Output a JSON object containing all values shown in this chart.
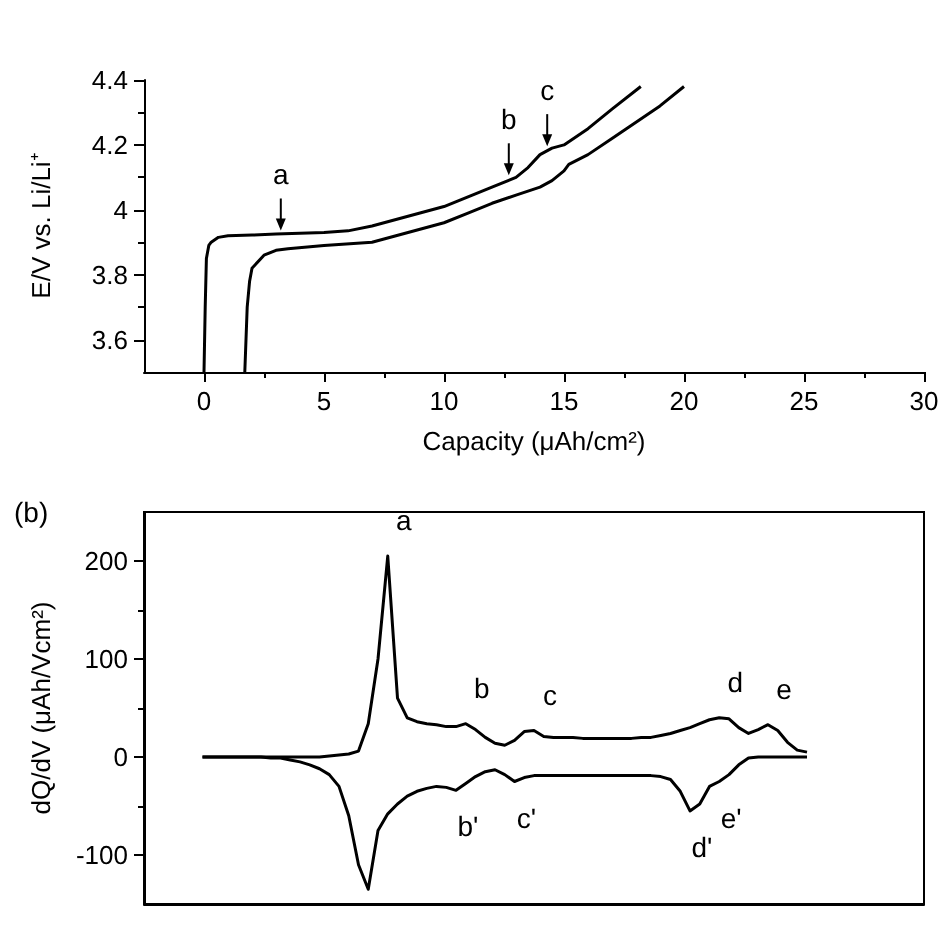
{
  "chart_data": [
    {
      "type": "line",
      "xlabel": "Capacity (μAh/cm²)",
      "ylabel": "E/V vs. Li/Li⁺",
      "xlim": [
        -2.5,
        30
      ],
      "xticks": [
        0,
        5,
        10,
        15,
        20,
        25,
        30
      ],
      "ylim": [
        3.5,
        4.4
      ],
      "yticks": [
        3.6,
        3.8,
        4.0,
        4.2,
        4.4
      ],
      "grid": false,
      "marker": "none",
      "line_style": "solid",
      "annotations": [
        {
          "text": "a",
          "x": 3.2,
          "y": 3.93
        },
        {
          "text": "b",
          "x": 12.7,
          "y": 4.1
        },
        {
          "text": "c",
          "x": 14.3,
          "y": 4.19
        }
      ],
      "series": [
        {
          "color": "#000000",
          "x": [
            0,
            0.05,
            0.1,
            0.2,
            0.3,
            0.6,
            1,
            2,
            3,
            4,
            5,
            6,
            7,
            8,
            9,
            10,
            11,
            12,
            13,
            13.5,
            14,
            14.5,
            15,
            16,
            17,
            18.2
          ],
          "values": [
            3.5,
            3.7,
            3.85,
            3.89,
            3.9,
            3.915,
            3.92,
            3.922,
            3.925,
            3.928,
            3.93,
            3.935,
            3.95,
            3.97,
            3.99,
            4.01,
            4.04,
            4.07,
            4.1,
            4.13,
            4.17,
            4.19,
            4.2,
            4.25,
            4.31,
            4.38
          ]
        },
        {
          "color": "#000000",
          "x": [
            1.7,
            1.75,
            1.8,
            1.9,
            2,
            2.5,
            3,
            3.5,
            5,
            7,
            8,
            9,
            10,
            11,
            12,
            13,
            14,
            14.5,
            15,
            15.2,
            16,
            17,
            18,
            19,
            20
          ],
          "values": [
            3.5,
            3.6,
            3.7,
            3.78,
            3.82,
            3.86,
            3.875,
            3.88,
            3.89,
            3.9,
            3.92,
            3.94,
            3.96,
            3.99,
            4.02,
            4.045,
            4.07,
            4.09,
            4.12,
            4.14,
            4.17,
            4.22,
            4.27,
            4.32,
            4.38
          ]
        }
      ]
    },
    {
      "type": "line",
      "title": "(b)",
      "ylabel": "dQ/dV (μAh/Vcm²)",
      "categories": [
        null,
        null,
        null,
        null,
        null,
        null,
        null,
        null,
        null,
        null,
        null,
        null,
        null,
        null,
        null,
        null,
        null,
        null,
        null,
        null,
        null,
        null,
        null,
        null,
        null,
        null,
        null,
        null,
        null,
        null,
        null,
        null,
        null,
        null,
        null,
        null,
        null,
        null,
        null,
        null,
        null,
        null,
        null,
        null,
        null,
        null,
        null,
        null,
        null,
        null,
        null,
        null,
        null,
        null,
        null,
        null,
        null,
        null,
        null,
        null,
        null,
        null,
        null,
        null,
        null,
        null,
        null,
        null,
        null,
        null,
        null,
        null,
        null,
        null,
        null,
        null,
        null,
        null,
        null,
        null,
        null
      ],
      "ylim": [
        -150,
        250
      ],
      "yticks": [
        -100,
        0,
        100,
        200
      ],
      "tick_labels": "y",
      "grid": false,
      "line_style": "solid",
      "series": [
        {
          "color": "#000000",
          "values": [
            null,
            null,
            null,
            null,
            null,
            null,
            0,
            0,
            0,
            0,
            0,
            0,
            0,
            0,
            0,
            0,
            0,
            0,
            0,
            1,
            2,
            3,
            6,
            34,
            100,
            205,
            60,
            40,
            36,
            34,
            33,
            31,
            31,
            34,
            28,
            20,
            14,
            12,
            17,
            26,
            27,
            21,
            20,
            20,
            20,
            19,
            19,
            19,
            19,
            19,
            19,
            20,
            20,
            22,
            24,
            27,
            30,
            34,
            38,
            40,
            39,
            30,
            24,
            28,
            33,
            27,
            15,
            7,
            5,
            null,
            null,
            null,
            null,
            null,
            null,
            null,
            null,
            null,
            null,
            null,
            null
          ],
          "value_labels": [
            null,
            null,
            null,
            null,
            null,
            null,
            null,
            null,
            null,
            null,
            null,
            null,
            null,
            null,
            null,
            null,
            null,
            null,
            null,
            null,
            null,
            null,
            null,
            null,
            null,
            "a",
            null,
            null,
            null,
            null,
            null,
            null,
            null,
            "b",
            null,
            null,
            null,
            null,
            null,
            null,
            "c",
            null,
            null,
            null,
            null,
            null,
            null,
            null,
            null,
            null,
            null,
            null,
            null,
            null,
            null,
            null,
            null,
            null,
            null,
            "d",
            null,
            null,
            null,
            null,
            "e",
            null,
            null,
            null,
            null,
            null,
            null,
            null,
            null,
            null,
            null,
            null,
            null,
            null,
            null,
            null,
            null
          ]
        },
        {
          "color": "#000000",
          "values": [
            null,
            null,
            null,
            null,
            null,
            null,
            0,
            0,
            0,
            0,
            0,
            0,
            0,
            -1,
            -1,
            -3,
            -5,
            -8,
            -12,
            -18,
            -30,
            -60,
            -110,
            -135,
            -75,
            -58,
            -48,
            -40,
            -35,
            -32,
            -30,
            -31,
            -34,
            -27,
            -20,
            -15,
            -13,
            -18,
            -25,
            -21,
            -19,
            -19,
            -19,
            -19,
            -19,
            -19,
            -19,
            -19,
            -19,
            -19,
            -19,
            -19,
            -19,
            -20,
            -23,
            -35,
            -55,
            -48,
            -30,
            -25,
            -18,
            -8,
            -1,
            0,
            0,
            0,
            0,
            0,
            0,
            null,
            null,
            null,
            null,
            null,
            null,
            null,
            null,
            null,
            null,
            null,
            null
          ],
          "value_labels": [
            null,
            null,
            null,
            null,
            null,
            null,
            null,
            null,
            null,
            null,
            null,
            null,
            null,
            null,
            null,
            null,
            null,
            null,
            null,
            null,
            null,
            null,
            null,
            null,
            null,
            null,
            null,
            null,
            null,
            null,
            null,
            null,
            "b'",
            null,
            null,
            null,
            null,
            null,
            "c'",
            null,
            null,
            null,
            null,
            null,
            null,
            null,
            null,
            null,
            null,
            null,
            null,
            null,
            null,
            null,
            null,
            null,
            "d'",
            null,
            null,
            "e'",
            null,
            null,
            null,
            null,
            null,
            null,
            null,
            null,
            null,
            null,
            null,
            null,
            null,
            null,
            null,
            null,
            null,
            null,
            null,
            null,
            null
          ]
        }
      ]
    }
  ]
}
